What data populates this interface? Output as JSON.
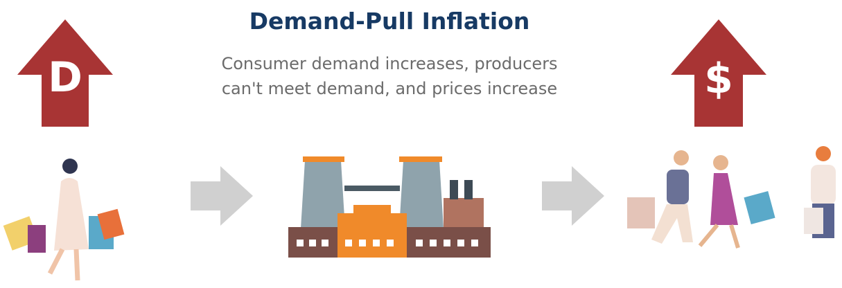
{
  "title": "Demand-Pull Inflation",
  "subtitle": [
    "Consumer demand increases, producers",
    "can't meet demand, and prices increase"
  ],
  "left_icon": {
    "label": "D"
  },
  "right_icon": {
    "label": "$"
  }
}
